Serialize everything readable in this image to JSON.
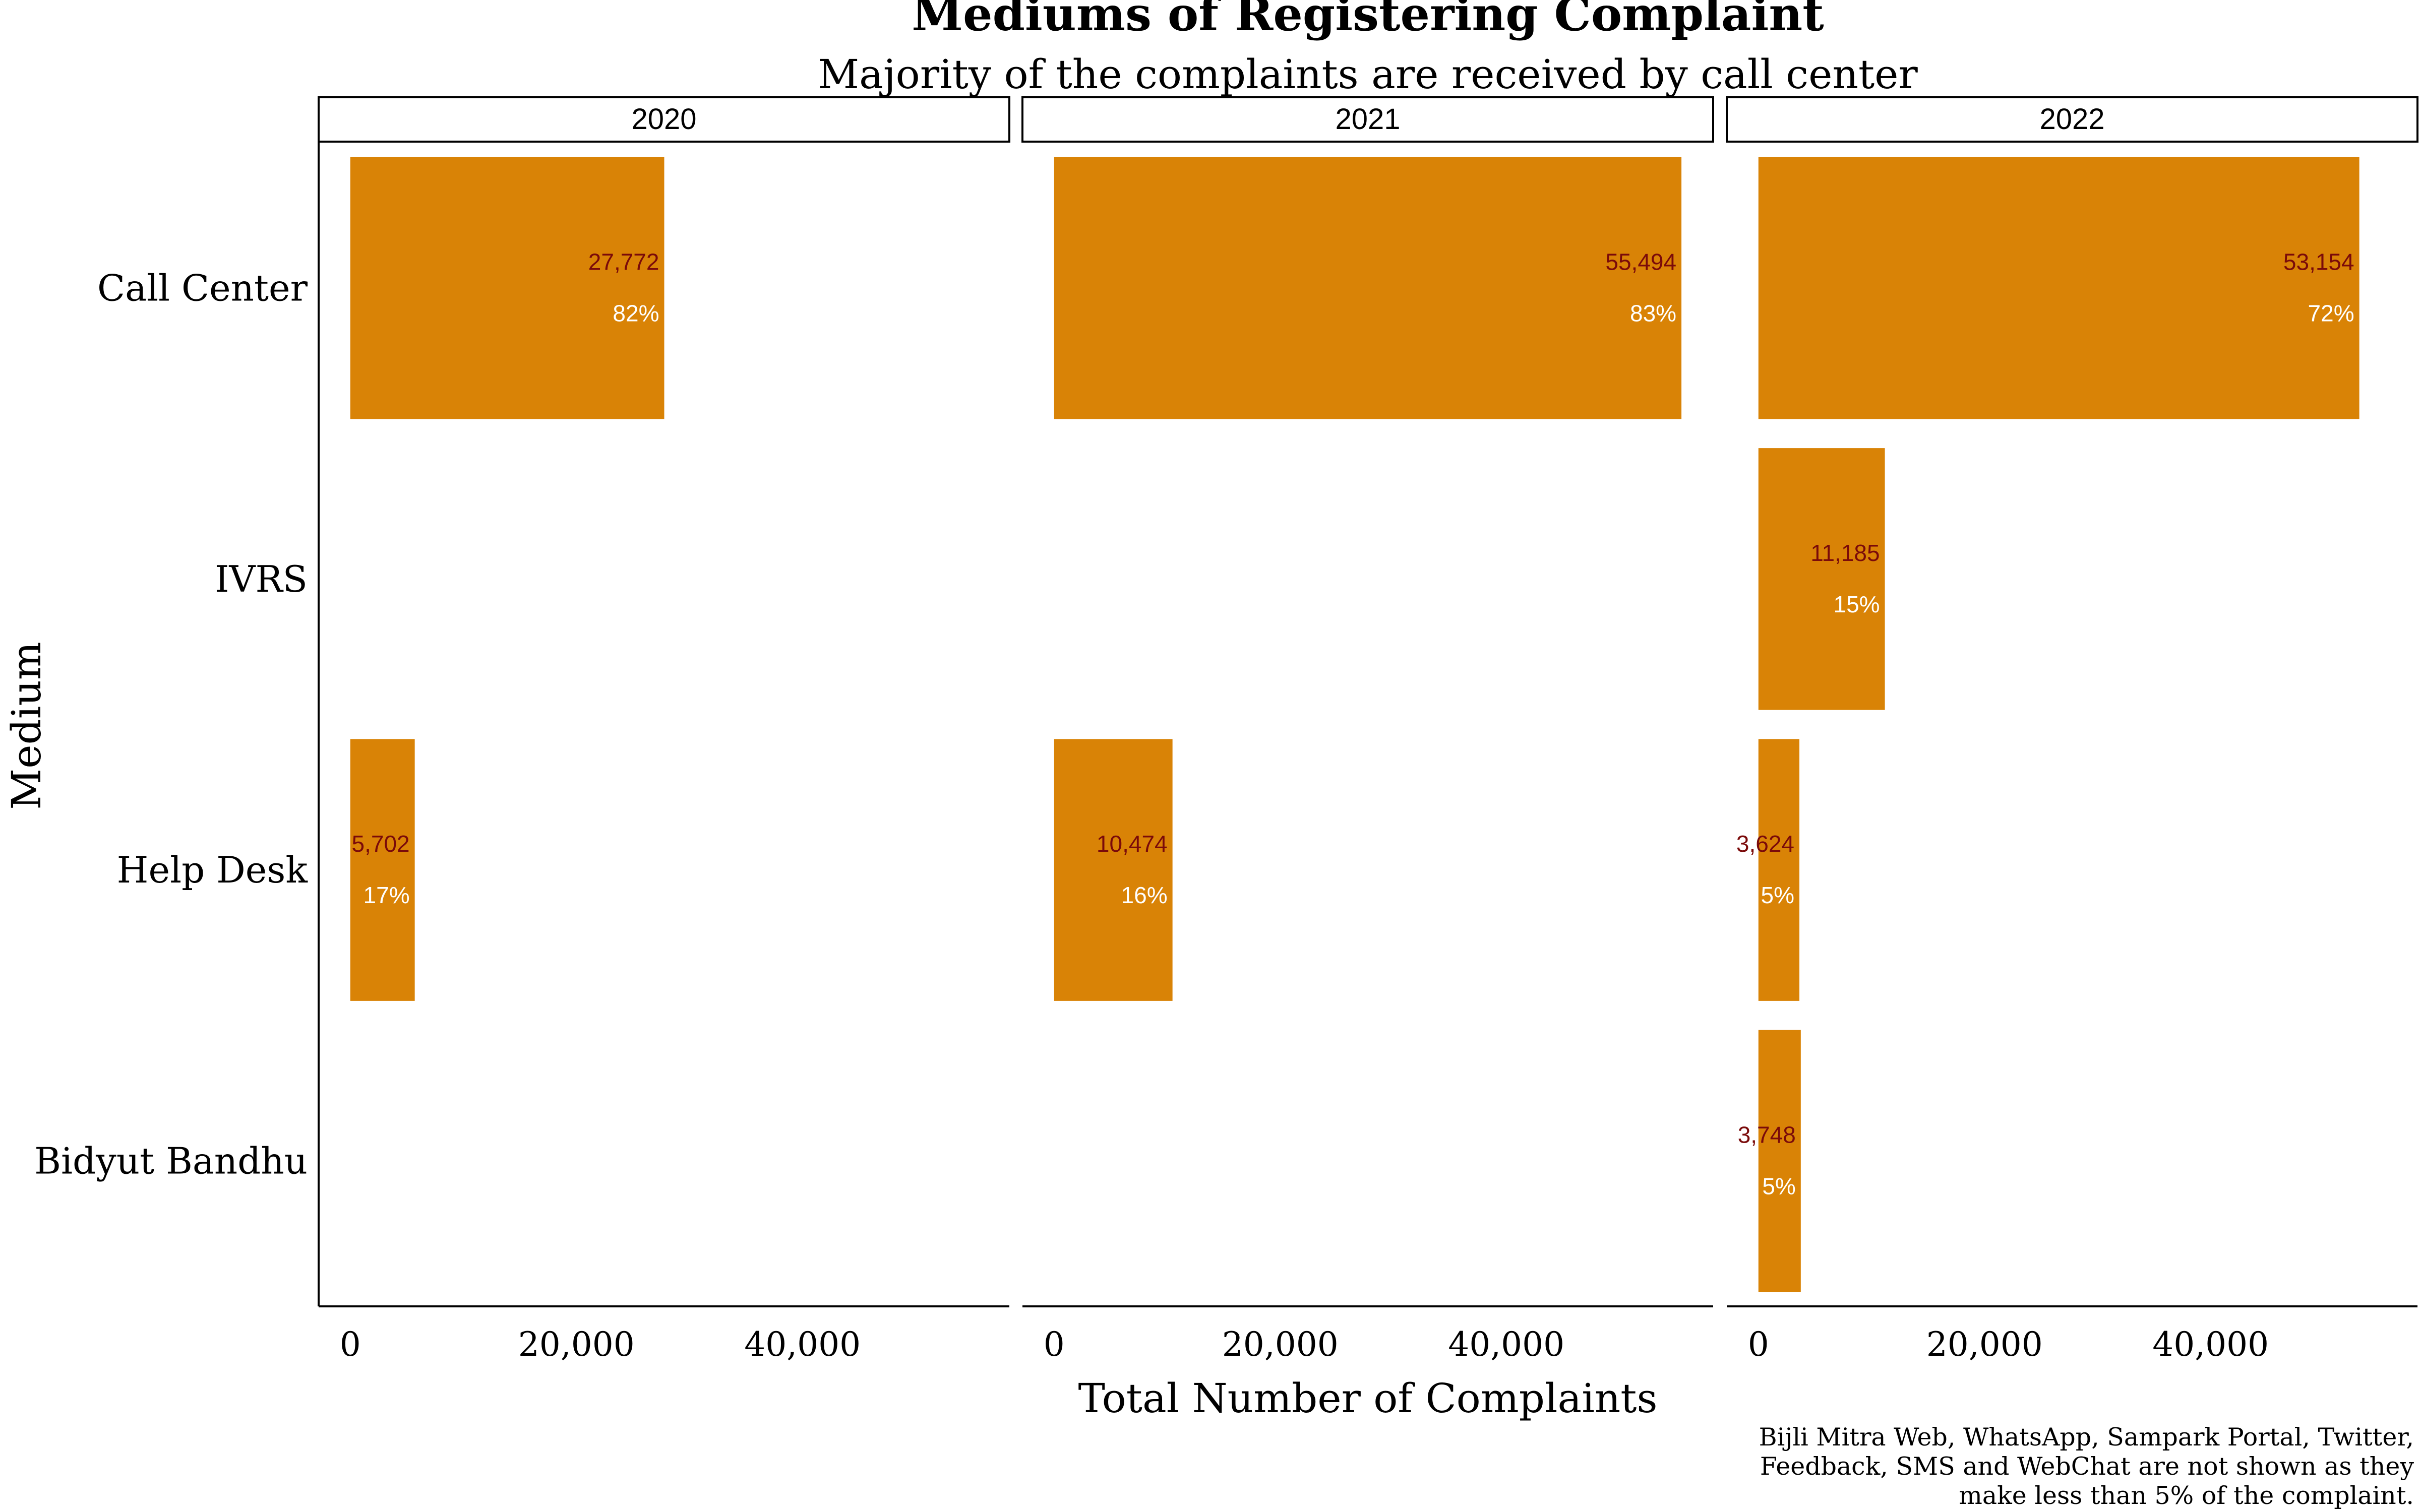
{
  "chart_data": {
    "type": "bar",
    "orientation": "horizontal",
    "title": "Mediums of Registering Complaint",
    "subtitle": "Majority of the complaints are received by call center",
    "xlabel": "Total Number of Complaints",
    "ylabel": "Medium",
    "caption": [
      "Bijli Mitra Web, WhatsApp, Sampark Portal, Twitter,",
      "Feedback, SMS and WebChat are not shown as they",
      "make less than 5% of the complaint."
    ],
    "categories": [
      "Call Center",
      "IVRS",
      "Help Desk",
      "Bidyut Bandhu"
    ],
    "x_ticks": [
      {
        "value": 0,
        "label": "0"
      },
      {
        "value": 20000,
        "label": "20,000"
      },
      {
        "value": 40000,
        "label": "40,000"
      }
    ],
    "xlim": [
      -2800,
      58300
    ],
    "grid": false,
    "bar_color": "#d98306",
    "value_label_color": "#7a0a0a",
    "percent_label_color": "#ffffff",
    "facets": [
      {
        "name": "2020",
        "bars": [
          {
            "category": "Call Center",
            "value": 27772,
            "value_label": "27,772",
            "percent_label": "82%"
          },
          {
            "category": "Help Desk",
            "value": 5702,
            "value_label": "5,702",
            "percent_label": "17%"
          }
        ]
      },
      {
        "name": "2021",
        "bars": [
          {
            "category": "Call Center",
            "value": 55494,
            "value_label": "55,494",
            "percent_label": "83%"
          },
          {
            "category": "Help Desk",
            "value": 10474,
            "value_label": "10,474",
            "percent_label": "16%"
          }
        ]
      },
      {
        "name": "2022",
        "bars": [
          {
            "category": "Call Center",
            "value": 53154,
            "value_label": "53,154",
            "percent_label": "72%"
          },
          {
            "category": "IVRS",
            "value": 11185,
            "value_label": "11,185",
            "percent_label": "15%"
          },
          {
            "category": "Help Desk",
            "value": 3624,
            "value_label": "3,624",
            "percent_label": "5%"
          },
          {
            "category": "Bidyut Bandhu",
            "value": 3748,
            "value_label": "3,748",
            "percent_label": "5%"
          }
        ]
      }
    ]
  }
}
